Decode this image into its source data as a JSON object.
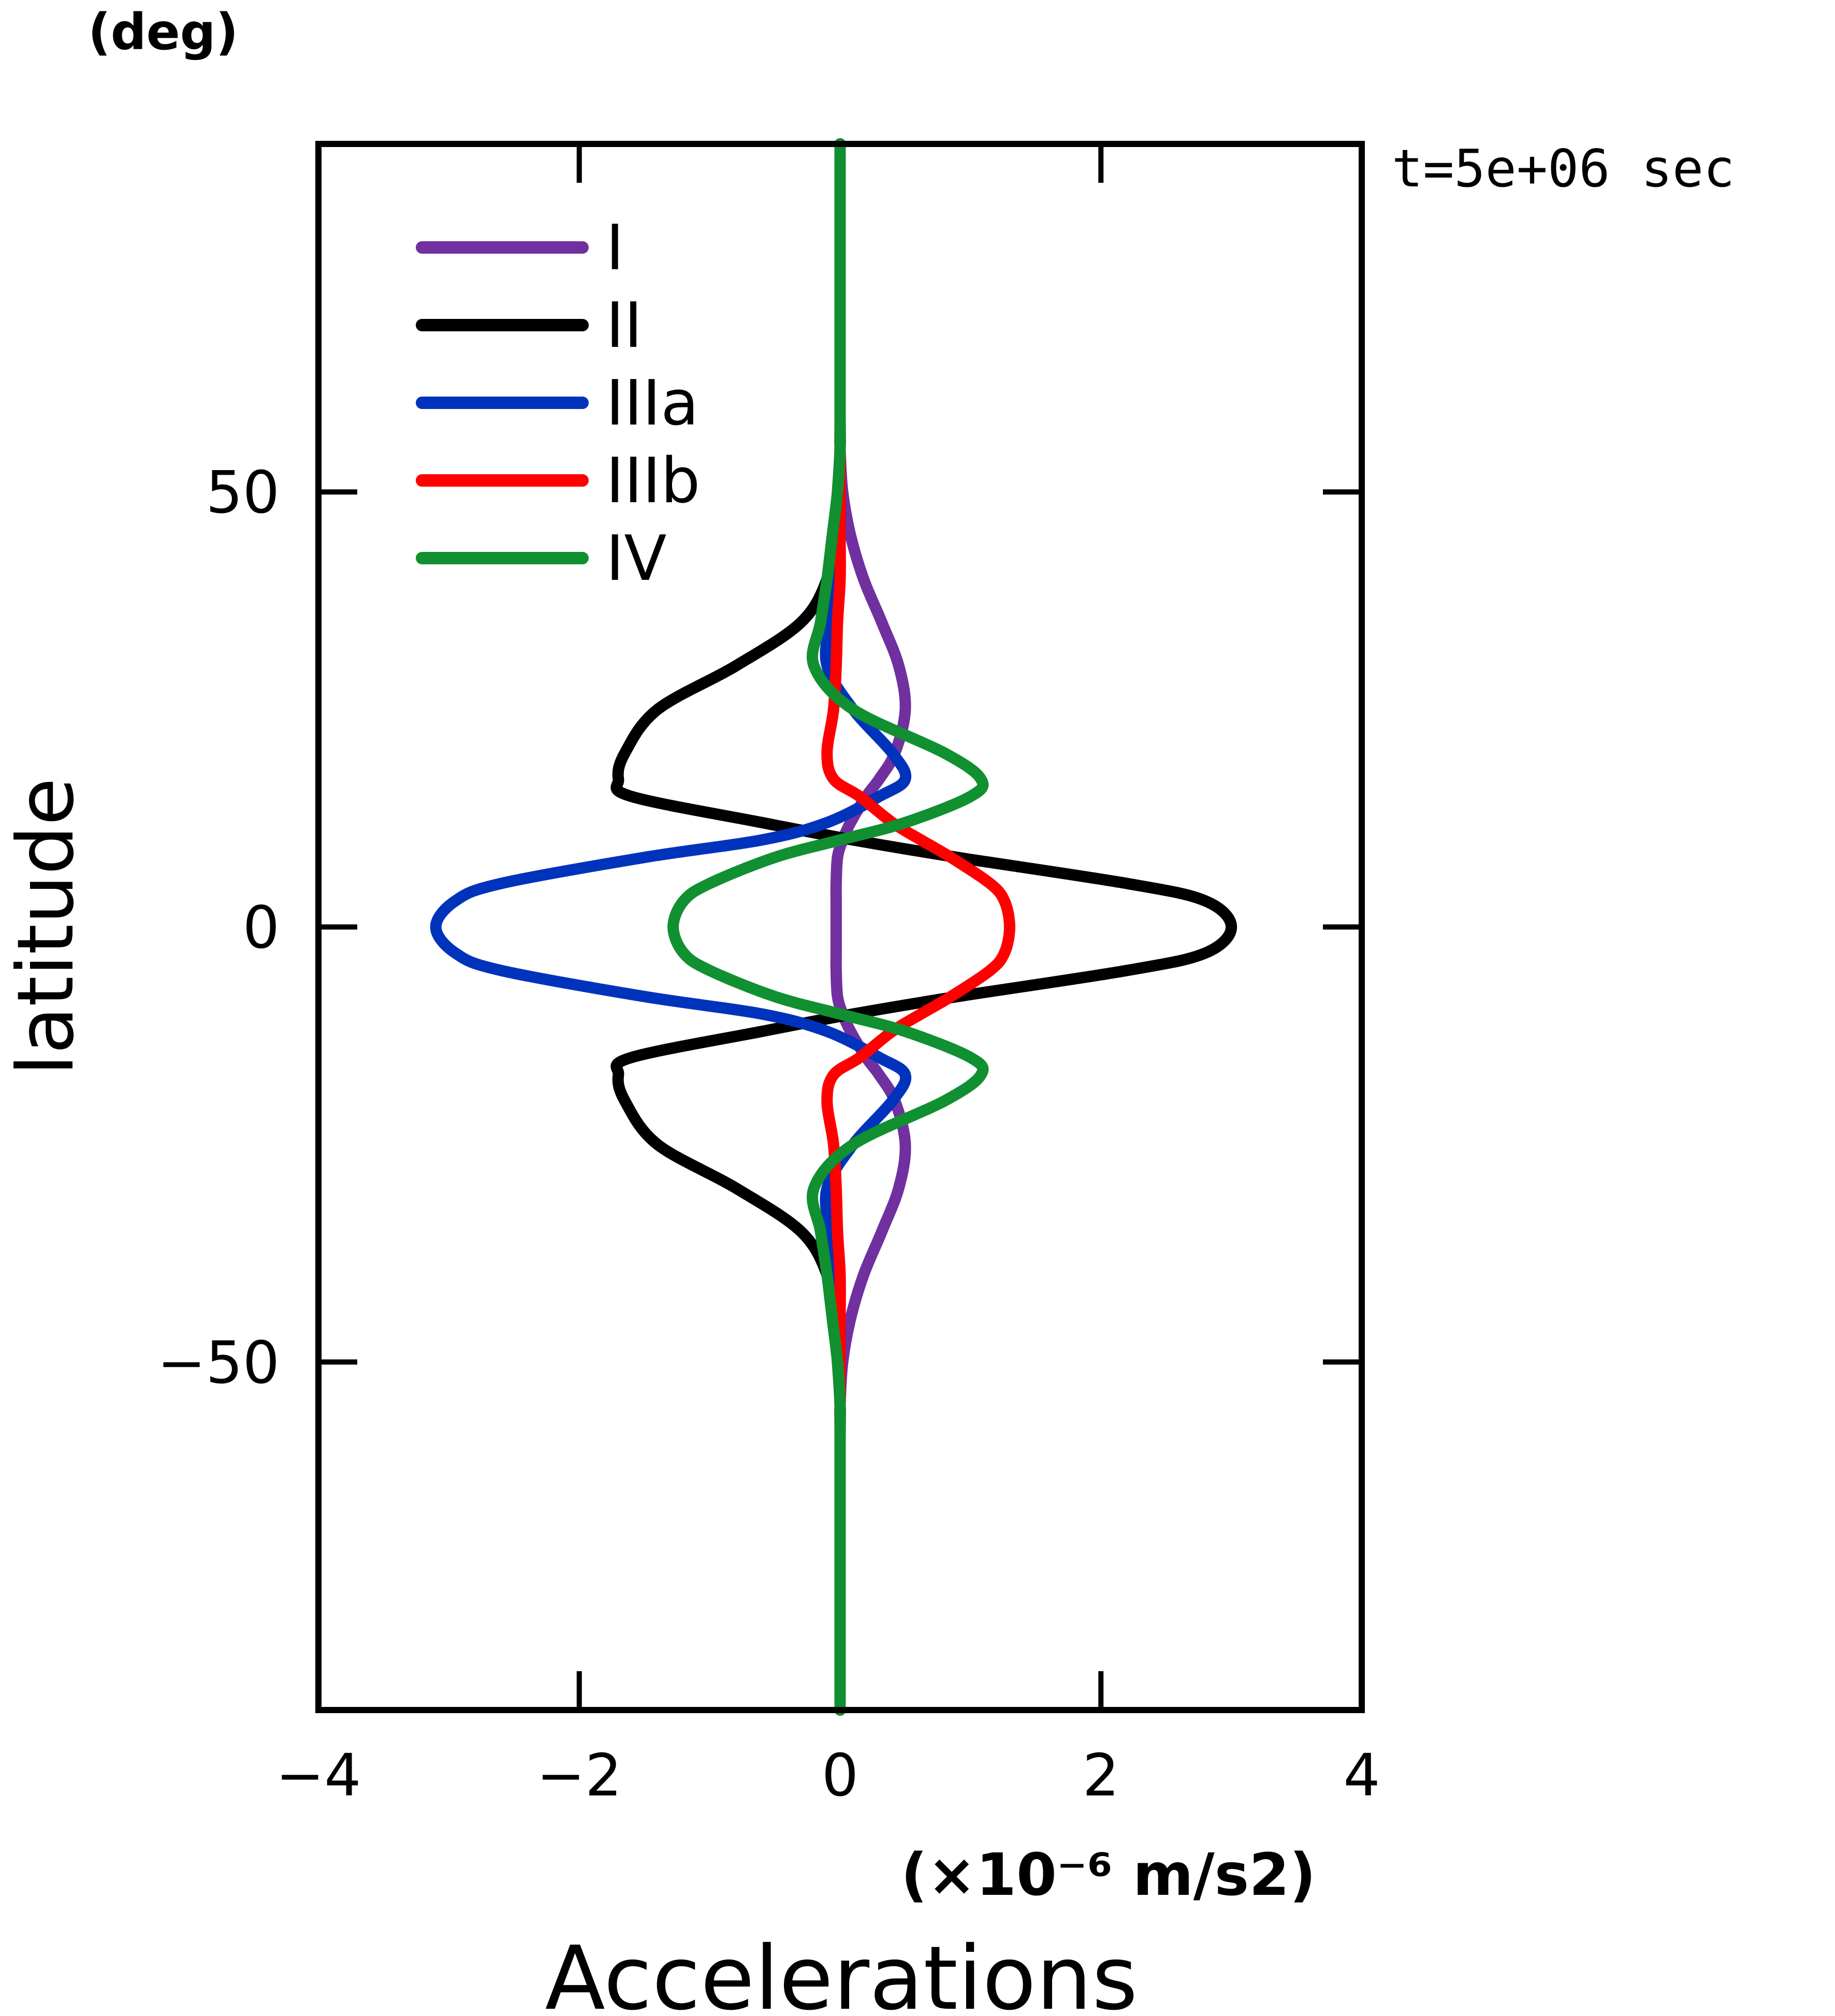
{
  "chart_data": {
    "type": "line",
    "orientation": "x-value-vs-latitude",
    "title": "",
    "time_label": "t=5e+06 sec",
    "xlabel": "Accelerations",
    "x_unit": "(×10⁻⁶ m/s2)",
    "ylabel": "latitude",
    "y_unit": "(deg)",
    "xlim": [
      -4,
      4
    ],
    "ylim": [
      -90,
      90
    ],
    "x_ticks": [
      -4,
      -2,
      0,
      2,
      4
    ],
    "x_tick_labels": [
      "−4",
      "−2",
      "0",
      "2",
      "4"
    ],
    "y_ticks": [
      -50,
      0,
      50
    ],
    "y_tick_labels": [
      "−50",
      "0",
      "50"
    ],
    "grid": false,
    "legend_position": "top-left",
    "y": [
      -90,
      -60,
      -55,
      -50,
      -45,
      -40,
      -35,
      -30,
      -25,
      -20,
      -17,
      -15,
      -12,
      -10,
      -8,
      -5,
      -3,
      0,
      3,
      5,
      8,
      10,
      12,
      15,
      17,
      20,
      25,
      30,
      35,
      40,
      45,
      50,
      55,
      60,
      90
    ],
    "series": [
      {
        "name": "I",
        "color": "#7030a0",
        "values": [
          0,
          0,
          0,
          0.02,
          0.08,
          0.18,
          0.32,
          0.45,
          0.5,
          0.42,
          0.3,
          0.2,
          0.08,
          0.02,
          -0.02,
          -0.03,
          -0.03,
          -0.03,
          -0.03,
          -0.03,
          -0.02,
          0.02,
          0.08,
          0.2,
          0.3,
          0.42,
          0.5,
          0.45,
          0.32,
          0.18,
          0.08,
          0.02,
          0,
          0,
          0
        ]
      },
      {
        "name": "II",
        "color": "#000000",
        "values": [
          0,
          0,
          0,
          -0.02,
          -0.05,
          -0.1,
          -0.3,
          -0.8,
          -1.4,
          -1.65,
          -1.7,
          -1.6,
          -0.6,
          0.1,
          0.9,
          2.2,
          2.8,
          3.0,
          2.8,
          2.2,
          0.9,
          0.1,
          -0.6,
          -1.6,
          -1.7,
          -1.65,
          -1.4,
          -0.8,
          -0.3,
          -0.1,
          -0.05,
          -0.02,
          0,
          0,
          0
        ]
      },
      {
        "name": "IIIa",
        "color": "#0033bb",
        "values": [
          0,
          0,
          0,
          0,
          0,
          -0.02,
          -0.08,
          -0.1,
          0.1,
          0.4,
          0.5,
          0.3,
          -0.1,
          -0.6,
          -1.5,
          -2.6,
          -2.95,
          -3.1,
          -2.95,
          -2.6,
          -1.5,
          -0.6,
          -0.1,
          0.3,
          0.5,
          0.4,
          0.1,
          -0.1,
          -0.08,
          -0.02,
          0,
          0,
          0,
          0,
          0
        ]
      },
      {
        "name": "IIIb",
        "color": "#ff0000",
        "values": [
          0,
          0,
          0,
          0,
          0,
          0,
          -0.02,
          -0.03,
          -0.05,
          -0.1,
          -0.05,
          0.15,
          0.4,
          0.62,
          0.85,
          1.15,
          1.26,
          1.3,
          1.26,
          1.15,
          0.85,
          0.62,
          0.4,
          0.15,
          -0.05,
          -0.1,
          -0.05,
          -0.03,
          -0.02,
          0,
          0,
          0,
          0,
          0,
          0
        ]
      },
      {
        "name": "IV",
        "color": "#109030",
        "values": [
          0,
          0,
          0,
          -0.02,
          -0.06,
          -0.1,
          -0.15,
          -0.2,
          0.1,
          0.8,
          1.08,
          1.0,
          0.5,
          0.0,
          -0.5,
          -1.0,
          -1.2,
          -1.28,
          -1.2,
          -1.0,
          -0.5,
          0.0,
          0.5,
          1.0,
          1.08,
          0.8,
          0.1,
          -0.2,
          -0.15,
          -0.1,
          -0.06,
          -0.02,
          0,
          0,
          0
        ]
      }
    ]
  }
}
